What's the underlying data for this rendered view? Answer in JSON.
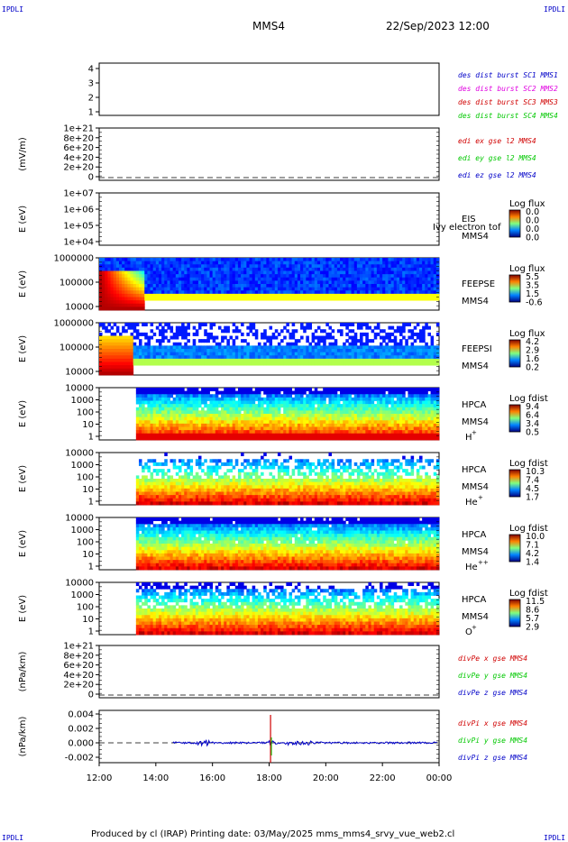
{
  "corners": {
    "tl": "IPDLI",
    "tr": "IPDLI",
    "bl": "IPDLI",
    "br": "IPDLI"
  },
  "header": {
    "spacecraft": "MMS4",
    "date": "22/Sep/2023 12:00"
  },
  "footer": {
    "text": "Produced by cl (IRAP)   Printing date: 03/May/2025   mms_mms4_srvy_vue_web2.cl"
  },
  "colors": {
    "red": "#d00000",
    "green": "#00c800",
    "blue": "#0000c8",
    "magenta": "#e000e0"
  },
  "chart_data": {
    "type": "stacked-timeseries",
    "x": {
      "ticks": [
        "12:00",
        "14:00",
        "16:00",
        "18:00",
        "20:00",
        "22:00",
        "00:00"
      ],
      "start_hours": 12,
      "end_hours": 24
    },
    "panels": [
      {
        "id": "burst",
        "type": "table",
        "yticks": [
          "4",
          "3",
          "2",
          "1"
        ],
        "legend": [
          {
            "text": "des dist burst SC1 MMS1",
            "color": "blue"
          },
          {
            "text": "des dist burst SC2 MMS2",
            "color": "magenta"
          },
          {
            "text": "des dist burst SC3 MMS3",
            "color": "red"
          },
          {
            "text": "des dist burst SC4 MMS4",
            "color": "green"
          }
        ]
      },
      {
        "id": "edi",
        "type": "line",
        "ylabel": "(mV/m)",
        "yticks": [
          "1e+21",
          "8e+20",
          "6e+20",
          "4e+20",
          "2e+20",
          "0"
        ],
        "legend": [
          {
            "text": "edi ex gse l2 MMS4",
            "color": "red"
          },
          {
            "text": "edi ey gse l2 MMS4",
            "color": "green"
          },
          {
            "text": "edi ez gse l2 MMS4",
            "color": "blue"
          }
        ]
      },
      {
        "id": "eis",
        "type": "heatmap",
        "ylabel": "E (eV)",
        "yticks": [
          "1e+07",
          "1e+06",
          "1e+05",
          "1e+04"
        ],
        "instrument": [
          "EIS",
          "MMS4"
        ],
        "overlay_label": "Ivy electron tof",
        "colorbar": {
          "title": "Log flux",
          "ticks": [
            "0.0",
            "0.0",
            "0.0",
            "0.0"
          ]
        }
      },
      {
        "id": "feepse",
        "type": "heatmap",
        "ylabel": "E (eV)",
        "yticks": [
          "1000000",
          "100000",
          "10000"
        ],
        "instrument": [
          "FEEPSE",
          "MMS4"
        ],
        "colorbar": {
          "title": "Log flux",
          "ticks": [
            "5.5",
            "3.5",
            "1.5",
            "-0.6"
          ]
        }
      },
      {
        "id": "feepsi",
        "type": "heatmap",
        "ylabel": "E (eV)",
        "yticks": [
          "1000000",
          "100000",
          "10000"
        ],
        "instrument": [
          "FEEPSI",
          "MMS4"
        ],
        "colorbar": {
          "title": "Log flux",
          "ticks": [
            "4.2",
            "2.9",
            "1.6",
            "0.2"
          ]
        }
      },
      {
        "id": "hpca_h",
        "type": "heatmap",
        "ylabel": "E (eV)",
        "yticks": [
          "10000",
          "1000",
          "100",
          "10",
          "1"
        ],
        "instrument": [
          "HPCA",
          "MMS4"
        ],
        "species": "H",
        "charge": "+",
        "colorbar": {
          "title": "Log fdist",
          "ticks": [
            "9.4",
            "6.4",
            "3.4",
            "0.5"
          ]
        }
      },
      {
        "id": "hpca_he",
        "type": "heatmap",
        "ylabel": "E (eV)",
        "yticks": [
          "10000",
          "1000",
          "100",
          "10",
          "1"
        ],
        "instrument": [
          "HPCA",
          "MMS4"
        ],
        "species": "He",
        "charge": "+",
        "colorbar": {
          "title": "Log fdist",
          "ticks": [
            "10.3",
            "7.4",
            "4.5",
            "1.7"
          ]
        }
      },
      {
        "id": "hpca_he2",
        "type": "heatmap",
        "ylabel": "E (eV)",
        "yticks": [
          "10000",
          "1000",
          "100",
          "10",
          "1"
        ],
        "instrument": [
          "HPCA",
          "MMS4"
        ],
        "species": "He",
        "charge": "++",
        "colorbar": {
          "title": "Log fdist",
          "ticks": [
            "10.0",
            "7.1",
            "4.2",
            "1.4"
          ]
        }
      },
      {
        "id": "hpca_o",
        "type": "heatmap",
        "ylabel": "E (eV)",
        "yticks": [
          "10000",
          "1000",
          "100",
          "10",
          "1"
        ],
        "instrument": [
          "HPCA",
          "MMS4"
        ],
        "species": "O",
        "charge": "+",
        "colorbar": {
          "title": "Log fdist",
          "ticks": [
            "11.5",
            "8.6",
            "5.7",
            "2.9"
          ]
        }
      },
      {
        "id": "divpe",
        "type": "line",
        "ylabel": "(nPa/km)",
        "yticks": [
          "1e+21",
          "8e+20",
          "6e+20",
          "4e+20",
          "2e+20",
          "0"
        ],
        "legend": [
          {
            "text": "divPe x gse MMS4",
            "color": "red"
          },
          {
            "text": "divPe y gse MMS4",
            "color": "green"
          },
          {
            "text": "divPe z gse MMS4",
            "color": "blue"
          }
        ]
      },
      {
        "id": "divpi",
        "type": "line",
        "ylabel": "(nPa/km)",
        "yticks": [
          "0.004",
          "0.002",
          "0.000",
          "-0.002"
        ],
        "legend": [
          {
            "text": "divPi x gse MMS4",
            "color": "red"
          },
          {
            "text": "divPi y gse MMS4",
            "color": "green"
          },
          {
            "text": "divPi z gse MMS4",
            "color": "blue"
          }
        ]
      }
    ]
  }
}
